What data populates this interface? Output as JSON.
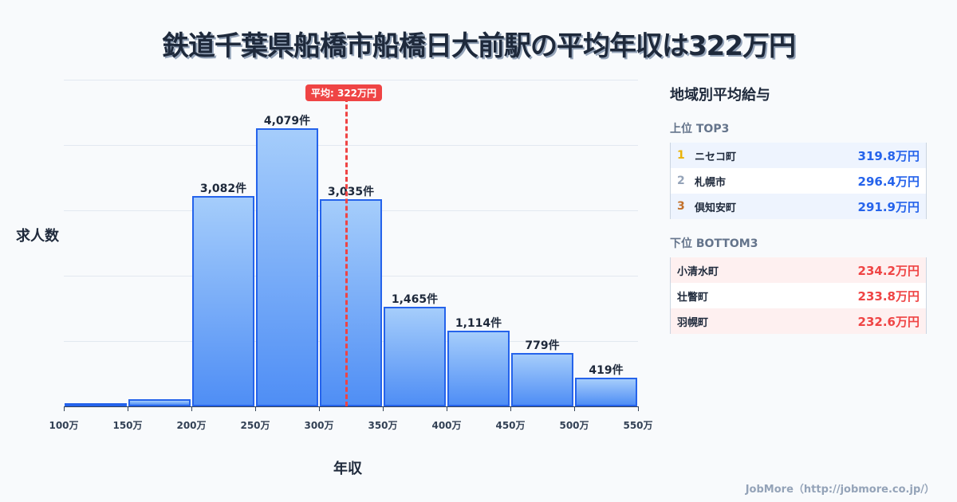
{
  "title": "鉄道千葉県船橋市船橋日大前駅の平均年収は322万円",
  "chart": {
    "ylabel": "求人数",
    "xlabel": "年収",
    "average_label": "平均: 322万円",
    "ticks": [
      "100万",
      "150万",
      "200万",
      "250万",
      "300万",
      "350万",
      "400万",
      "450万",
      "500万",
      "550万"
    ],
    "bar_labels": [
      "",
      "",
      "3,082件",
      "4,079件",
      "3,035件",
      "1,465件",
      "1,114件",
      "779件",
      "419件"
    ]
  },
  "chart_data": {
    "type": "bar",
    "title": "鉄道千葉県船橋市船橋日大前駅の平均年収は322万円",
    "xlabel": "年収",
    "ylabel": "求人数",
    "categories": [
      "100-150万",
      "150-200万",
      "200-250万",
      "250-300万",
      "300-350万",
      "350-400万",
      "400-450万",
      "450-500万",
      "500-550万"
    ],
    "values": [
      10,
      105,
      3082,
      4079,
      3035,
      1465,
      1114,
      779,
      419
    ],
    "annotations": [
      {
        "type": "vline",
        "x": 322,
        "label": "平均: 322万円",
        "color": "#ef4444"
      }
    ],
    "ylim": [
      0,
      4800
    ],
    "grid": true,
    "bar_color": "#4f8ef5",
    "bar_edge_color": "#2563eb"
  },
  "sidebar": {
    "title": "地域別平均給与",
    "top_label": "上位 TOP3",
    "top": [
      {
        "rank": "1",
        "name": "ニセコ町",
        "value": "319.8万円",
        "color": "#eab308"
      },
      {
        "rank": "2",
        "name": "札幌市",
        "value": "296.4万円",
        "color": "#94a3b8"
      },
      {
        "rank": "3",
        "name": "倶知安町",
        "value": "291.9万円",
        "color": "#c2702a"
      }
    ],
    "bottom_label": "下位 BOTTOM3",
    "bottom": [
      {
        "name": "小清水町",
        "value": "234.2万円"
      },
      {
        "name": "壮瞥町",
        "value": "233.8万円"
      },
      {
        "name": "羽幌町",
        "value": "232.6万円"
      }
    ]
  },
  "footer": "JobMore（http://jobmore.co.jp/）"
}
